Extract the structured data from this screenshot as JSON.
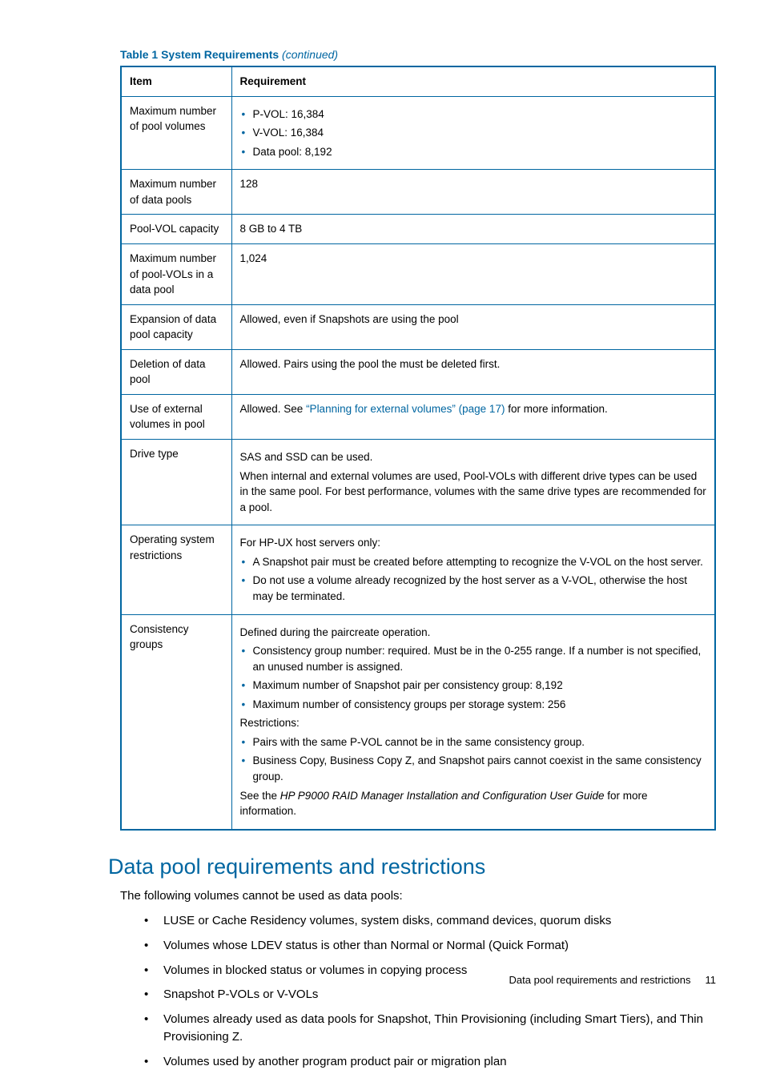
{
  "tableCaption": {
    "bold": "Table 1 System Requirements",
    "italic": " (continued)"
  },
  "columns": [
    "Item",
    "Requirement"
  ],
  "rows": [
    {
      "item": "Maximum number of pool volumes",
      "req": {
        "bullets": [
          "P-VOL: 16,384",
          "V-VOL: 16,384",
          "Data pool: 8,192"
        ]
      }
    },
    {
      "item": "Maximum number of data pools",
      "req": {
        "text": "128"
      }
    },
    {
      "item": "Pool-VOL capacity",
      "req": {
        "text": "8 GB to 4 TB"
      }
    },
    {
      "item": "Maximum number of pool-VOLs in a data pool",
      "req": {
        "text": "1,024"
      }
    },
    {
      "item": "Expansion of data pool capacity",
      "req": {
        "text": "Allowed, even if Snapshots are using the pool"
      }
    },
    {
      "item": "Deletion of data pool",
      "req": {
        "text": "Allowed. Pairs using the pool the must be deleted first."
      }
    },
    {
      "item": "Use of external volumes in pool",
      "req": {
        "pre": "Allowed. See ",
        "link": "“Planning for external volumes” (page 17)",
        "post": " for more information."
      }
    },
    {
      "item": "Drive type",
      "req": {
        "paras": [
          "SAS and SSD can be used.",
          "When internal and external volumes are used, Pool-VOLs with different drive types can be used in the same pool. For best performance, volumes with the same drive types are recommended for a pool."
        ]
      }
    },
    {
      "item": "Operating system restrictions",
      "req": {
        "lead": "For HP-UX host servers only:",
        "bullets": [
          "A Snapshot pair must be created before attempting to recognize the V-VOL on the host server.",
          "Do not use a volume already recognized by the host server as a V-VOL, otherwise the host may be terminated."
        ]
      }
    },
    {
      "item": "Consistency groups",
      "req": {
        "lead": "Defined during the paircreate operation.",
        "bullets": [
          "Consistency group number: required. Must be in the 0-255 range. If a number is not specified, an unused number is assigned.",
          "Maximum number of Snapshot pair per consistency group: 8,192",
          "Maximum number of consistency groups per storage system: 256"
        ],
        "mid": "Restrictions:",
        "bullets2": [
          "Pairs with the same P-VOL cannot be in the same consistency group.",
          "Business Copy, Business Copy Z, and Snapshot pairs cannot coexist in the same consistency group."
        ],
        "trail_pre": "See the ",
        "trail_italic": "HP P9000 RAID Manager Installation and Configuration User Guide",
        "trail_post": " for more information."
      }
    }
  ],
  "sectionHeading": "Data pool requirements and restrictions",
  "sectionIntro": "The following volumes cannot be used as data pools:",
  "sectionBullets": [
    "LUSE or Cache Residency volumes, system disks, command devices, quorum disks",
    "Volumes whose LDEV status is other than Normal or Normal (Quick Format)",
    "Volumes in blocked status or volumes in copying process",
    "Snapshot P-VOLs or V-VOLs",
    "Volumes already used as data pools for Snapshot, Thin Provisioning (including Smart Tiers), and Thin Provisioning Z.",
    "Volumes used by another program product pair or migration plan"
  ],
  "footerText": "Data pool requirements and restrictions",
  "pageNumber": "11",
  "colors": {
    "brand": "#0066a1"
  }
}
